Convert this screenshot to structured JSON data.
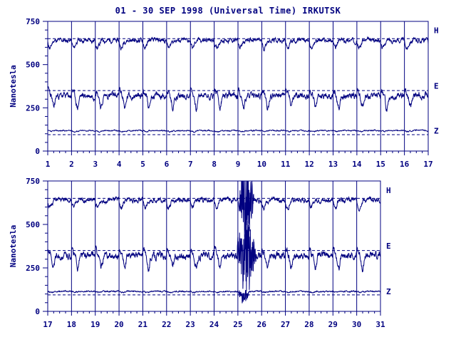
{
  "title": "01 - 30 SEP 1998 (Universal Time) IRKUTSK",
  "chart_data": [
    {
      "type": "line",
      "ylabel": "Nanotesla",
      "ylim": [
        0,
        750
      ],
      "yticks": [
        0,
        250,
        500,
        750
      ],
      "x_ticks": [
        "1",
        "2",
        "3",
        "4",
        "5",
        "6",
        "7",
        "8",
        "9",
        "10",
        "11",
        "12",
        "13",
        "14",
        "15",
        "16",
        "17"
      ],
      "xlim": [
        1,
        17
      ],
      "grid": true,
      "baselines": [
        650,
        350,
        95
      ],
      "series": [
        {
          "name": "H",
          "base": 640,
          "amp": 45,
          "seed": 11,
          "storm": null
        },
        {
          "name": "E",
          "base": 320,
          "amp": 70,
          "seed": 23,
          "storm": null
        },
        {
          "name": "Z",
          "base": 118,
          "amp": 6,
          "seed": 37,
          "storm": null
        }
      ]
    },
    {
      "type": "line",
      "ylabel": "Nanotesla",
      "ylim": [
        0,
        750
      ],
      "yticks": [
        0,
        250,
        500,
        750
      ],
      "x_ticks": [
        "17",
        "18",
        "19",
        "20",
        "21",
        "22",
        "23",
        "24",
        "25",
        "26",
        "27",
        "28",
        "29",
        "30",
        "31"
      ],
      "xlim": [
        17,
        31
      ],
      "grid": true,
      "baselines": [
        650,
        350,
        95
      ],
      "series": [
        {
          "name": "H",
          "base": 640,
          "amp": 45,
          "seed": 51,
          "storm": [
            25.0,
            25.7,
            250
          ]
        },
        {
          "name": "E",
          "base": 320,
          "amp": 70,
          "seed": 63,
          "storm": [
            24.9,
            25.8,
            220
          ]
        },
        {
          "name": "Z",
          "base": 115,
          "amp": 6,
          "seed": 77,
          "storm": [
            25.0,
            25.5,
            40
          ]
        }
      ]
    }
  ]
}
